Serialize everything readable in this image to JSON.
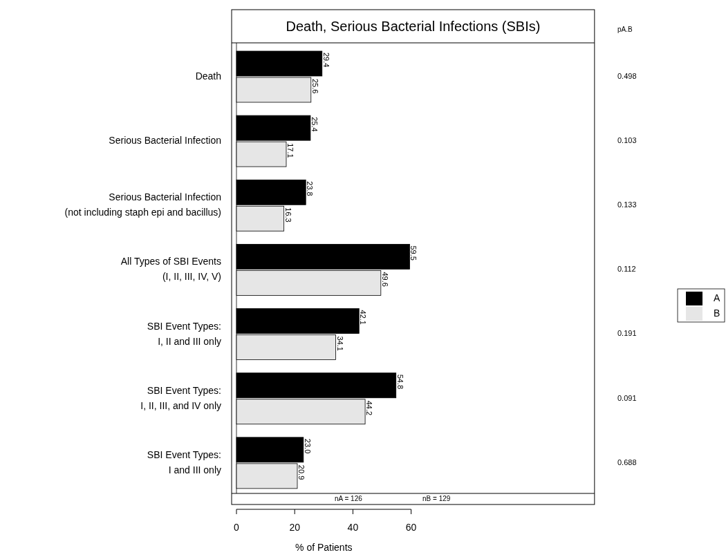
{
  "chart_data": {
    "type": "bar",
    "orientation": "horizontal",
    "title": "Death, Serious Bacterial Infections (SBIs)",
    "xlabel": "% of Patients",
    "categories": [
      "Death",
      "Serious Bacterial Infection",
      "Serious Bacterial Infection\n(not including staph epi and bacillus)",
      "All Types of SBI Events\n(I, II, III, IV, V)",
      "SBI Event Types:\nI, II and III only",
      "SBI Event Types:\nI, II, III, and IV only",
      "SBI Event Types:\nI and III only"
    ],
    "series": [
      {
        "name": "A",
        "color": "#000000",
        "values": [
          29.4,
          25.4,
          23.8,
          59.5,
          42.1,
          54.8,
          23.0
        ],
        "value_labels": [
          "29.4",
          "25.4",
          "23.8",
          "59.5",
          "42.1",
          "54.8",
          "23.0"
        ]
      },
      {
        "name": "B",
        "color": "#e6e6e6",
        "values": [
          25.6,
          17.1,
          16.3,
          49.6,
          34.1,
          44.2,
          20.9
        ],
        "value_labels": [
          "25.6",
          "17.1",
          "16.3",
          "49.6",
          "34.1",
          "44.2",
          "20.9"
        ]
      }
    ],
    "xlim": [
      0,
      123
    ],
    "xticks": [
      0,
      20,
      40,
      60
    ],
    "legend": "right",
    "annotations": [
      "pA.B",
      "0.498",
      "0.103",
      "0.133",
      "0.112",
      "0.191",
      "0.091",
      "0.688",
      "nA = 126",
      "nB = 129"
    ]
  }
}
